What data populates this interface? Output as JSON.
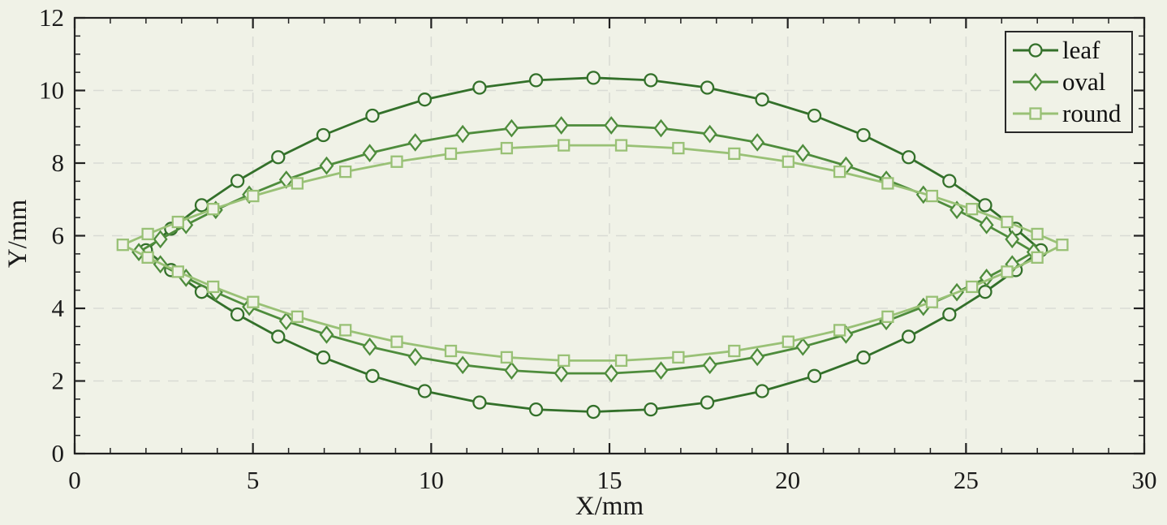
{
  "figure": {
    "background": "#f0f2e7",
    "axis_color": "#212121",
    "grid_color": "#d9dbd5",
    "text_color": "#1b1b1b"
  },
  "chart_data": {
    "type": "line",
    "description": "Three closed lens/leaf-shaped outlines with pointed tips at both ends, open markers on every data point",
    "title": "",
    "xlabel": "X/mm",
    "ylabel": "Y/mm",
    "xlim": [
      0,
      30
    ],
    "ylim": [
      0,
      12
    ],
    "x_major_ticks": [
      0,
      5,
      10,
      15,
      20,
      25,
      30
    ],
    "y_major_ticks": [
      0,
      2,
      4,
      6,
      8,
      10,
      12
    ],
    "x_minor_step": 1,
    "y_minor_step": 0.5,
    "grid": "dashed-major",
    "legend_position": "top-right-inside",
    "series": [
      {
        "name": "leaf",
        "marker": "circle",
        "color": "#33702a",
        "left_tip": [
          2.0,
          5.6
        ],
        "right_tip": [
          27.1,
          5.6
        ],
        "peak": [
          14.55,
          10.35
        ],
        "valley": [
          14.55,
          1.15
        ],
        "points_per_arc": 21
      },
      {
        "name": "oval",
        "marker": "diamond",
        "color": "#4e8c3c",
        "left_tip": [
          1.8,
          5.55
        ],
        "right_tip": [
          26.9,
          5.55
        ],
        "peak": [
          14.35,
          9.05
        ],
        "valley": [
          14.35,
          2.2
        ],
        "points_per_arc": 24
      },
      {
        "name": "round",
        "marker": "square",
        "color": "#99c176",
        "left_tip": [
          1.35,
          5.75
        ],
        "right_tip": [
          27.7,
          5.75
        ],
        "peak": [
          14.53,
          8.5
        ],
        "valley": [
          14.53,
          2.55
        ],
        "points_per_arc": 22
      }
    ]
  },
  "legend": {
    "items": [
      {
        "label": "leaf"
      },
      {
        "label": "oval"
      },
      {
        "label": "round"
      }
    ]
  }
}
